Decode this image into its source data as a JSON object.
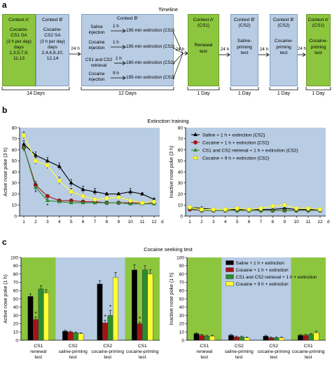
{
  "panel_labels": {
    "a": "a",
    "b": "b",
    "c": "c"
  },
  "timeline": {
    "title": "Timeline",
    "box1": {
      "title": "Context A'",
      "lines": [
        "Cocaine-",
        "CS1 SA",
        "(3 h per day)",
        "days",
        "1,3,5,7,9,",
        "11,13"
      ]
    },
    "box2": {
      "title": "Context B'",
      "lines": [
        "Cocaine-",
        "CS2 SA",
        "(3 h per day)",
        "days",
        "2,4,6,8,10,",
        "12,14"
      ]
    },
    "label_24h": "24 h",
    "box3_title": "Context B'",
    "conditions": [
      {
        "label": "Saline injection",
        "arrow": "1 h",
        "result": "195-min extinction (CS2)"
      },
      {
        "label": "Cocaine injection",
        "arrow": "1 h",
        "result": "195-min extinction (CS2)"
      },
      {
        "label": "CS1 and CS2 retrieval",
        "arrow": "1 h",
        "result": "180-min extinction (CS2)"
      },
      {
        "label": "Cocaine injection",
        "arrow": "9 h",
        "result": "195-min extinction (CS2)"
      }
    ],
    "test1": {
      "title": "Context A' (CS1)",
      "lines": [
        "Renewal",
        "test"
      ]
    },
    "test2": {
      "title": "Context B' (CS2)",
      "lines": [
        "Saline-",
        "priming",
        "test"
      ]
    },
    "test3": {
      "title": "Context B' (CS2)",
      "lines": [
        "Cocaine-",
        "priming",
        "test"
      ]
    },
    "test4": {
      "title": "Context A' (CS1)",
      "lines": [
        "Cocaine-",
        "priming",
        "test"
      ]
    },
    "durations": {
      "d1": "14 Days",
      "d2": "12 Days",
      "d3": "1 Day",
      "d4": "1 Day",
      "d5": "1 Day",
      "d6": "1 Day"
    }
  },
  "extinction": {
    "title": "Extinction training",
    "legend": [
      "Saline + 1 h + extinction (CS2)",
      "Cocaine + 1 h + extinction (CS2)",
      "CS1 and CS2 retrieval + 1 h + extinction (CS2)",
      "Cocaine + 9 h + extinction (CS2)"
    ]
  },
  "seeking": {
    "title": "Cocaine seeking test",
    "legend": [
      "Saline + 1 h + extinction",
      "Cocaine + 1 h + extinction",
      "CS1 and CS2 retrieval + 1 h + extinction",
      "Cocaine + 9 h + extinction"
    ]
  },
  "colors": {
    "saline": "#000000",
    "cocaine": "#a31515",
    "retrieval": "#2e8b2e",
    "cocaine9h": "#ffff33",
    "bg_blue": "#b8cce4",
    "bg_green": "#8cc63f"
  },
  "chart_data": [
    {
      "type": "line",
      "ylabel": "Active nose poke (3 h)",
      "x": [
        1,
        2,
        3,
        4,
        5,
        6,
        7,
        8,
        9,
        10,
        11,
        12
      ],
      "xtick_labels": [
        "1",
        "2",
        "3",
        "4",
        "5",
        "6",
        "7",
        "8",
        "9",
        "10",
        "11",
        "12"
      ],
      "x_unit": "d",
      "ylim": [
        0,
        80
      ],
      "yticks": [
        0,
        10,
        20,
        30,
        40,
        50,
        60,
        70,
        80
      ],
      "series": [
        {
          "name": "Saline + 1 h + extinction (CS2)",
          "values": [
            65,
            55,
            50,
            45,
            30,
            24,
            22,
            20,
            20,
            22,
            20,
            15
          ]
        },
        {
          "name": "Cocaine + 1 h + extinction (CS2)",
          "values": [
            62,
            28,
            18,
            14,
            14,
            13,
            13,
            12,
            12,
            12,
            12,
            12
          ]
        },
        {
          "name": "CS1 and CS2 retrieval + 1 h + extinction (CS2)",
          "values": [
            62,
            26,
            14,
            13,
            12,
            12,
            12,
            12,
            12,
            11,
            11,
            11
          ]
        },
        {
          "name": "Cocaine + 9 h + extinction (CS2)",
          "values": [
            73,
            50,
            46,
            32,
            22,
            18,
            15,
            16,
            17,
            14,
            12,
            13
          ]
        }
      ],
      "annotations": [
        "*",
        "*"
      ]
    },
    {
      "type": "line",
      "ylabel": "Inactive nose poke (3 h)",
      "x": [
        1,
        2,
        3,
        4,
        5,
        6,
        7,
        8,
        9,
        10,
        11,
        12
      ],
      "xtick_labels": [
        "1",
        "2",
        "3",
        "4",
        "5",
        "6",
        "7",
        "8",
        "9",
        "10",
        "11",
        "12"
      ],
      "x_unit": "d",
      "ylim": [
        0,
        80
      ],
      "yticks": [
        0,
        10,
        20,
        30,
        40,
        50,
        60,
        70,
        80
      ],
      "series": [
        {
          "name": "Saline + 1 h + extinction (CS2)",
          "values": [
            8,
            7,
            6,
            6,
            6,
            6,
            6,
            6,
            7,
            6,
            6,
            6
          ]
        },
        {
          "name": "Cocaine + 1 h + extinction (CS2)",
          "values": [
            6,
            5,
            5,
            5,
            5,
            5,
            5,
            5,
            5,
            5,
            5,
            5
          ]
        },
        {
          "name": "CS1 and CS2 retrieval + 1 h + extinction (CS2)",
          "values": [
            7,
            5,
            5,
            5,
            5,
            5,
            5,
            5,
            5,
            5,
            5,
            5
          ]
        },
        {
          "name": "Cocaine + 9 h + extinction (CS2)",
          "values": [
            8,
            6,
            6,
            6,
            7,
            6,
            7,
            9,
            10,
            7,
            7,
            6
          ]
        }
      ]
    },
    {
      "type": "bar",
      "ylabel": "Active nose poke (1 h)",
      "categories": [
        "CS1 renewal test",
        "CS2 saline-priming test",
        "CS2 cocaine-priming test",
        "CS1 cocaine-priming test"
      ],
      "ylim": [
        0,
        100
      ],
      "yticks": [
        0,
        10,
        20,
        30,
        40,
        50,
        60,
        70,
        80,
        90,
        100
      ],
      "series": [
        {
          "name": "Saline + 1 h + extinction",
          "values": [
            53,
            11,
            68,
            85
          ],
          "errors": [
            3,
            1,
            4,
            6
          ]
        },
        {
          "name": "Cocaine + 1 h + extinction",
          "values": [
            25,
            10,
            21,
            20
          ],
          "errors": [
            3,
            1,
            3,
            2
          ]
        },
        {
          "name": "CS1 and CS2 retrieval + 1 h + extinction",
          "values": [
            62,
            9,
            30,
            85
          ],
          "errors": [
            4,
            1,
            6,
            5
          ]
        },
        {
          "name": "Cocaine + 9 h + extinction",
          "values": [
            57,
            8,
            76,
            80
          ],
          "errors": [
            4,
            1,
            6,
            5
          ]
        }
      ],
      "annotations": [
        "*",
        "*",
        "*",
        "*"
      ]
    },
    {
      "type": "bar",
      "ylabel": "Inactive nose poke (1 h)",
      "categories": [
        "CS1 renewal test",
        "CS2 saline-priming test",
        "CS2 cocaine-priming test",
        "CS1 cocaine-priming test"
      ],
      "ylim": [
        0,
        100
      ],
      "yticks": [
        0,
        10,
        20,
        30,
        40,
        50,
        60,
        70,
        80,
        90,
        100
      ],
      "series": [
        {
          "name": "Saline + 1 h + extinction",
          "values": [
            8,
            6,
            5,
            6
          ],
          "errors": [
            1,
            1,
            1,
            1
          ]
        },
        {
          "name": "Cocaine + 1 h + extinction",
          "values": [
            6,
            4,
            3,
            6
          ],
          "errors": [
            1,
            1,
            1,
            1
          ]
        },
        {
          "name": "CS1 and CS2 retrieval + 1 h + extinction",
          "values": [
            5,
            4,
            3,
            7
          ],
          "errors": [
            1,
            1,
            1,
            1
          ]
        },
        {
          "name": "Cocaine + 9 h + extinction",
          "values": [
            5,
            3,
            3,
            9
          ],
          "errors": [
            1,
            1,
            1,
            2
          ]
        }
      ]
    }
  ]
}
